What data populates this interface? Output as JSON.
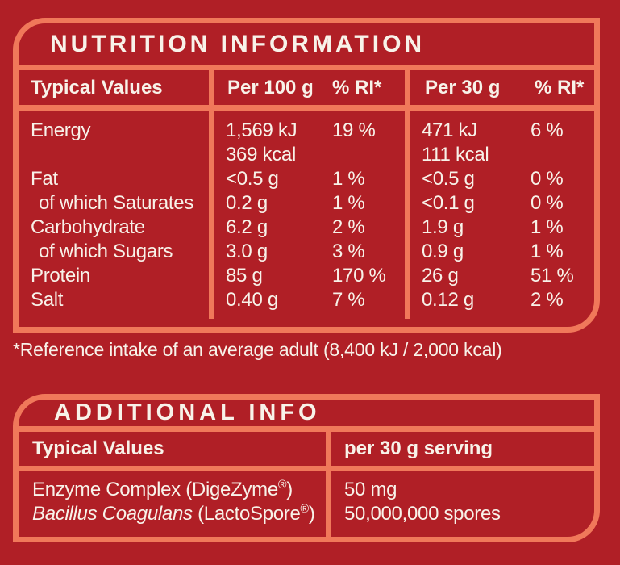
{
  "colors": {
    "background": "#B01F26",
    "panel_border": "#F0785A",
    "text": "#F8F2E9"
  },
  "nutrition_panel": {
    "title": "NUTRITION INFORMATION",
    "columns": {
      "typical_values": "Typical Values",
      "per_100g": "Per 100 g",
      "ri_100g": "% RI*",
      "per_30g": "Per 30 g",
      "ri_30g": "% RI*"
    },
    "rows": [
      {
        "label": "Energy",
        "per_100g": "1,569 kJ",
        "ri_100g": "19 %",
        "per_30g": "471 kJ",
        "ri_30g": "6 %"
      },
      {
        "label": "",
        "per_100g": "369 kcal",
        "ri_100g": "",
        "per_30g": "111 kcal",
        "ri_30g": ""
      },
      {
        "label": "Fat",
        "per_100g": "<0.5 g",
        "ri_100g": "1 %",
        "per_30g": "<0.5 g",
        "ri_30g": "0 %"
      },
      {
        "label": "of which Saturates",
        "per_100g": "0.2 g",
        "ri_100g": "1 %",
        "per_30g": "<0.1 g",
        "ri_30g": "0 %"
      },
      {
        "label": "Carbohydrate",
        "per_100g": "6.2 g",
        "ri_100g": "2 %",
        "per_30g": "1.9 g",
        "ri_30g": "1 %"
      },
      {
        "label": "of which Sugars",
        "per_100g": "3.0 g",
        "ri_100g": "3 %",
        "per_30g": "0.9 g",
        "ri_30g": "1 %"
      },
      {
        "label": "Protein",
        "per_100g": "85 g",
        "ri_100g": "170 %",
        "per_30g": "26 g",
        "ri_30g": "51 %"
      },
      {
        "label": "Salt",
        "per_100g": "0.40 g",
        "ri_100g": "7 %",
        "per_30g": "0.12 g",
        "ri_30g": "2 %"
      }
    ]
  },
  "footnote": "*Reference intake of an average adult (8,400 kJ / 2,000 kcal)",
  "additional_panel": {
    "title": "ADDITIONAL INFO",
    "columns": {
      "typical_values": "Typical Values",
      "per_serving": "per 30 g serving"
    },
    "rows": [
      {
        "name": "Enzyme Complex (DigeZyme",
        "reg": "®",
        "suffix": ")",
        "value": "50 mg"
      },
      {
        "name_italic": "Bacillus Coagulans",
        "name_rest": " (LactoSpore",
        "reg": "®",
        "suffix": ")",
        "value": "50,000,000 spores"
      }
    ]
  }
}
